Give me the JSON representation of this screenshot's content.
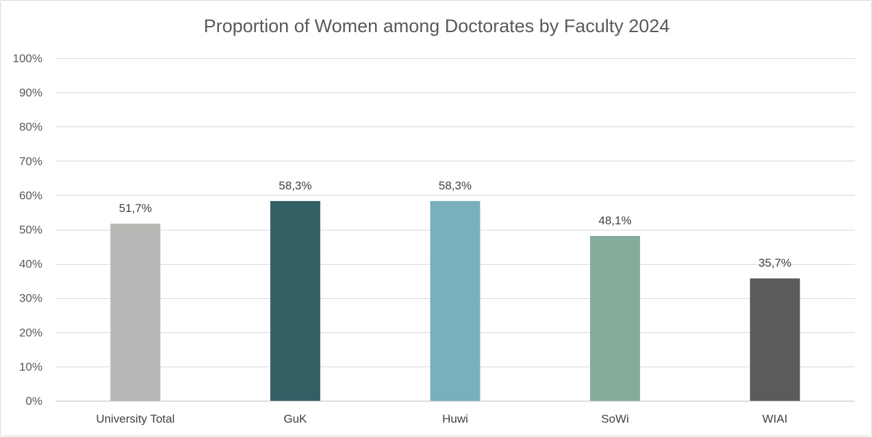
{
  "chart_data": {
    "type": "bar",
    "title": "Proportion of Women among Doctorates by Faculty 2024",
    "xlabel": "",
    "ylabel": "",
    "categories": [
      "University Total",
      "GuK",
      "Huwi",
      "SoWi",
      "WIAI"
    ],
    "values": [
      51.7,
      58.3,
      58.3,
      48.1,
      35.7
    ],
    "data_labels": [
      "51,7%",
      "58,3%",
      "58,3%",
      "48,1%",
      "35,7%"
    ],
    "bar_colors": [
      "#b7b7b5",
      "#345f65",
      "#78b0bb",
      "#84ac9b",
      "#5b5b59"
    ],
    "ylim": [
      0,
      100
    ],
    "ytick_values": [
      0,
      10,
      20,
      30,
      40,
      50,
      60,
      70,
      80,
      90,
      100
    ],
    "ytick_labels": [
      "0%",
      "10%",
      "20%",
      "30%",
      "40%",
      "50%",
      "60%",
      "70%",
      "80%",
      "90%",
      "100%"
    ],
    "grid": true,
    "legend": "none"
  }
}
